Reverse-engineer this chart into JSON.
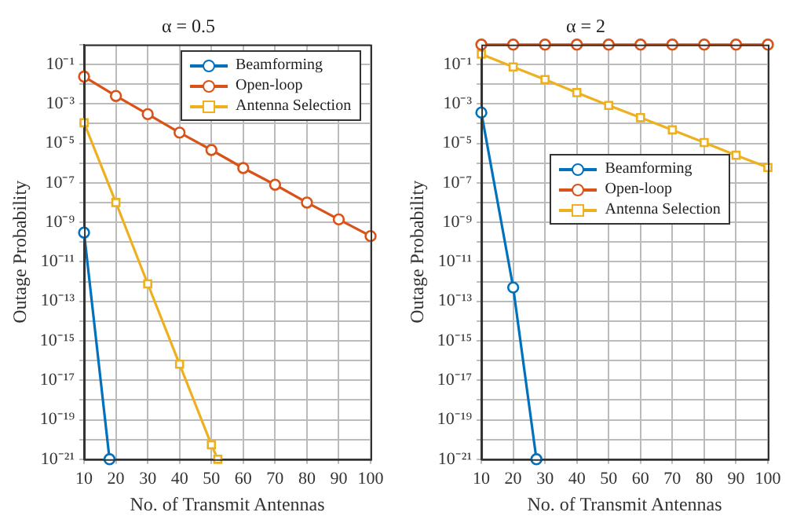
{
  "chart_data": [
    {
      "type": "line",
      "title": "α = 0.5",
      "xlabel": "No. of Transmit Antennas",
      "ylabel": "Outage Probability",
      "log": "y",
      "grid": true,
      "legend": "top right",
      "line_style": "solid",
      "x": [
        10,
        20,
        30,
        40,
        50,
        60,
        70,
        80,
        90,
        100
      ],
      "xlim": [
        10,
        100
      ],
      "xticks": [
        10,
        20,
        30,
        40,
        50,
        60,
        70,
        80,
        90,
        100
      ],
      "ylim": [
        1e-21,
        1
      ],
      "yticks": [
        {
          "value": 1e-21,
          "label": "10⁻²¹"
        },
        {
          "value": 1e-20,
          "label": null
        },
        {
          "value": 1e-19,
          "label": "10⁻¹⁹"
        },
        {
          "value": 1e-18,
          "label": null
        },
        {
          "value": 1e-17,
          "label": "10⁻¹⁷"
        },
        {
          "value": 1e-16,
          "label": null
        },
        {
          "value": 1e-15,
          "label": "10⁻¹⁵"
        },
        {
          "value": 1e-14,
          "label": null
        },
        {
          "value": 1e-13,
          "label": "10⁻¹³"
        },
        {
          "value": 1e-12,
          "label": null
        },
        {
          "value": 1e-11,
          "label": "10⁻¹¹"
        },
        {
          "value": 1e-10,
          "label": null
        },
        {
          "value": 1e-09,
          "label": "10⁻⁹"
        },
        {
          "value": 1e-08,
          "label": null
        },
        {
          "value": 1e-07,
          "label": "10⁻⁷"
        },
        {
          "value": 1e-06,
          "label": null
        },
        {
          "value": 1e-05,
          "label": "10⁻⁵"
        },
        {
          "value": 0.0001,
          "label": null
        },
        {
          "value": 0.001,
          "label": "10⁻³"
        },
        {
          "value": 0.01,
          "label": null
        },
        {
          "value": 0.1,
          "label": "10⁻¹"
        },
        {
          "value": 1,
          "label": null
        }
      ],
      "series": [
        {
          "name": "Beamforming",
          "color": "#0072bd",
          "marker": "circle",
          "x": [
            10,
            18
          ],
          "values": [
            3e-10,
            1e-21
          ]
        },
        {
          "name": "Open-loop",
          "color": "#d95319",
          "marker": "circle",
          "values": [
            0.024,
            0.0025,
            0.0003,
            3.5e-05,
            4.6e-06,
            5.6e-07,
            8e-08,
            1e-08,
            1.4e-09,
            2e-10
          ]
        },
        {
          "name": "Antenna Selection",
          "color": "#edb120",
          "marker": "square",
          "x": [
            10,
            20,
            30,
            40,
            50,
            52
          ],
          "values": [
            0.00011,
            1e-08,
            7.6e-13,
            6.5e-17,
            5.4e-21,
            1e-21
          ]
        }
      ]
    },
    {
      "type": "line",
      "title": "α = 2",
      "xlabel": "No. of Transmit Antennas",
      "ylabel": "Outage Probability",
      "log": "y",
      "grid": true,
      "legend": "center",
      "line_style": "solid",
      "x": [
        10,
        20,
        30,
        40,
        50,
        60,
        70,
        80,
        90,
        100
      ],
      "xlim": [
        10,
        100
      ],
      "xticks": [
        10,
        20,
        30,
        40,
        50,
        60,
        70,
        80,
        90,
        100
      ],
      "ylim": [
        1e-21,
        1
      ],
      "yticks": [
        {
          "value": 1e-21,
          "label": "10⁻²¹"
        },
        {
          "value": 1e-20,
          "label": null
        },
        {
          "value": 1e-19,
          "label": "10⁻¹⁹"
        },
        {
          "value": 1e-18,
          "label": null
        },
        {
          "value": 1e-17,
          "label": "10⁻¹⁷"
        },
        {
          "value": 1e-16,
          "label": null
        },
        {
          "value": 1e-15,
          "label": "10⁻¹⁵"
        },
        {
          "value": 1e-14,
          "label": null
        },
        {
          "value": 1e-13,
          "label": "10⁻¹³"
        },
        {
          "value": 1e-12,
          "label": null
        },
        {
          "value": 1e-11,
          "label": "10⁻¹¹"
        },
        {
          "value": 1e-10,
          "label": null
        },
        {
          "value": 1e-09,
          "label": "10⁻⁹"
        },
        {
          "value": 1e-08,
          "label": null
        },
        {
          "value": 1e-07,
          "label": "10⁻⁷"
        },
        {
          "value": 1e-06,
          "label": null
        },
        {
          "value": 1e-05,
          "label": "10⁻⁵"
        },
        {
          "value": 0.0001,
          "label": null
        },
        {
          "value": 0.001,
          "label": "10⁻³"
        },
        {
          "value": 0.01,
          "label": null
        },
        {
          "value": 0.1,
          "label": "10⁻¹"
        },
        {
          "value": 1,
          "label": null
        }
      ],
      "series": [
        {
          "name": "Beamforming",
          "color": "#0072bd",
          "marker": "circle",
          "x": [
            10,
            20,
            27.3
          ],
          "values": [
            0.00036,
            5e-13,
            1e-21
          ]
        },
        {
          "name": "Open-loop",
          "color": "#d95319",
          "marker": "circle",
          "values": [
            1,
            1,
            1,
            1,
            1,
            1,
            1,
            1,
            1,
            1
          ]
        },
        {
          "name": "Antenna Selection",
          "color": "#edb120",
          "marker": "square",
          "values": [
            0.33,
            0.074,
            0.017,
            0.0037,
            0.00083,
            0.0002,
            4.8e-05,
            1.1e-05,
            2.5e-06,
            6e-07
          ]
        }
      ]
    }
  ]
}
